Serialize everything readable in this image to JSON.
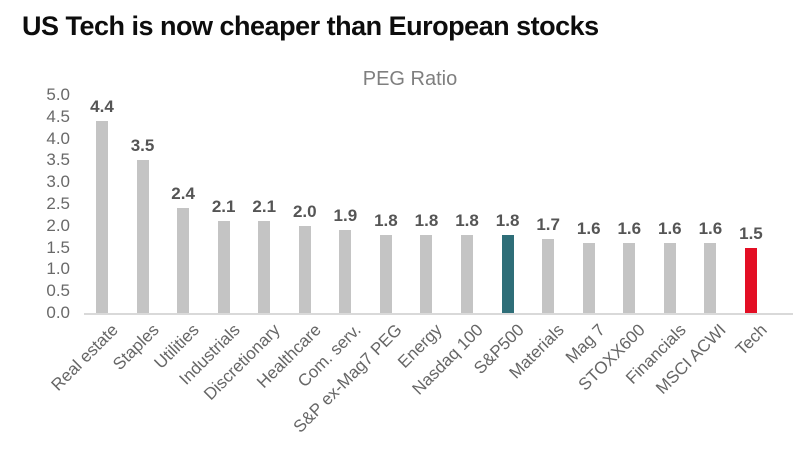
{
  "title": "US Tech is now cheaper than European stocks",
  "chart_data": {
    "type": "bar",
    "title": "PEG Ratio",
    "categories": [
      "Real estate",
      "Staples",
      "Utilities",
      "Industrials",
      "Discretionary",
      "Healthcare",
      "Com. serv.",
      "S&P ex-Mag7 PEG",
      "Energy",
      "Nasdaq 100",
      "S&P500",
      "Materials",
      "Mag 7",
      "STOXX600",
      "Financials",
      "MSCI ACWI",
      "Tech"
    ],
    "values": [
      4.4,
      3.5,
      2.4,
      2.1,
      2.1,
      2.0,
      1.9,
      1.8,
      1.8,
      1.8,
      1.8,
      1.7,
      1.6,
      1.6,
      1.6,
      1.6,
      1.5
    ],
    "value_labels": [
      "4.4",
      "3.5",
      "2.4",
      "2.1",
      "2.1",
      "2.0",
      "1.9",
      "1.8",
      "1.8",
      "1.8",
      "1.8",
      "1.7",
      "1.6",
      "1.6",
      "1.6",
      "1.6",
      "1.5"
    ],
    "bar_colors": [
      "#c4c4c4",
      "#c4c4c4",
      "#c4c4c4",
      "#c4c4c4",
      "#c4c4c4",
      "#c4c4c4",
      "#c4c4c4",
      "#c4c4c4",
      "#c4c4c4",
      "#c4c4c4",
      "#2e6e78",
      "#c4c4c4",
      "#c4c4c4",
      "#c4c4c4",
      "#c4c4c4",
      "#c4c4c4",
      "#e30e24"
    ],
    "highlights": {
      "S&P500": "#2e6e78",
      "Tech": "#e30e24"
    },
    "default_bar_color": "#c4c4c4",
    "xlabel": "",
    "ylabel": "",
    "ylim": [
      0.0,
      5.0
    ],
    "ytick_step": 0.5,
    "ytick_labels": [
      "0.0",
      "0.5",
      "1.0",
      "1.5",
      "2.0",
      "2.5",
      "3.0",
      "3.5",
      "4.0",
      "4.5",
      "5.0"
    ],
    "grid": false,
    "legend": null,
    "axis_line_color": "#d9d9d9"
  }
}
